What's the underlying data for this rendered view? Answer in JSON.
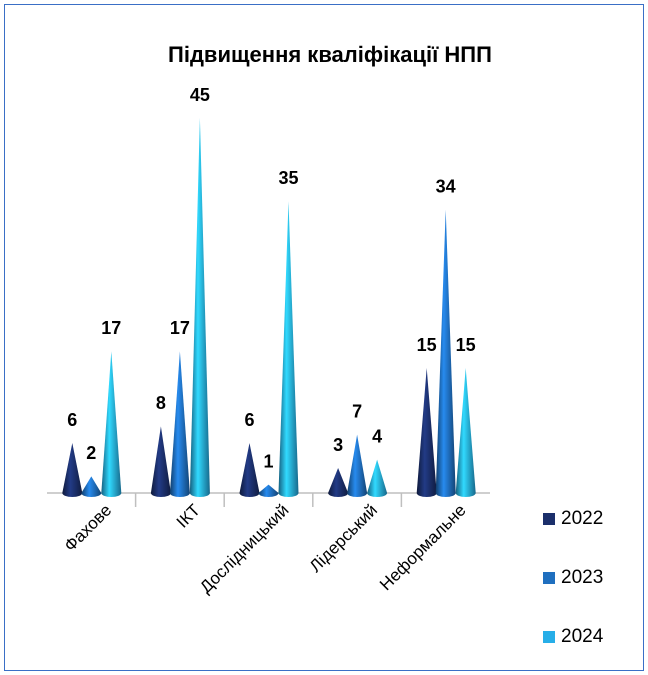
{
  "chart_data": {
    "type": "cone",
    "title": "Підвищення кваліфікації НПП",
    "categories": [
      "Фахове",
      "ІКТ",
      "Дослідницький",
      "Лідерський",
      "Неформальне"
    ],
    "series": [
      {
        "name": "2022",
        "color": "#1b2f6b",
        "values": [
          6,
          8,
          6,
          3,
          15
        ]
      },
      {
        "name": "2023",
        "color": "#1f6fbf",
        "values": [
          2,
          17,
          1,
          7,
          34
        ]
      },
      {
        "name": "2024",
        "color": "#27aee8",
        "values": [
          17,
          45,
          35,
          4,
          15
        ]
      }
    ],
    "legend": "right"
  }
}
